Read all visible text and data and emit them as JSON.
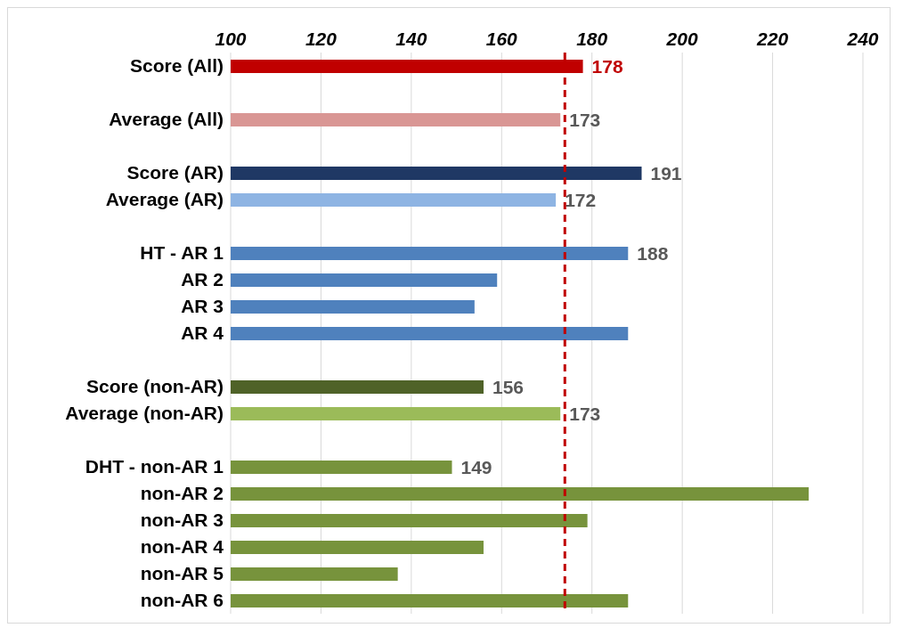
{
  "chart_data": {
    "type": "bar",
    "orientation": "horizontal",
    "categories": [
      "Score (All)",
      null,
      "Average (All)",
      null,
      "Score (AR)",
      "Average (AR)",
      null,
      "HT - AR 1",
      "AR 2",
      "AR 3",
      "AR 4",
      null,
      "Score (non-AR)",
      "Average (non-AR)",
      null,
      "DHT - non-AR 1",
      "non-AR 2",
      "non-AR 3",
      "non-AR 4",
      "non-AR 5",
      "non-AR 6"
    ],
    "values": [
      178,
      null,
      173,
      null,
      191,
      172,
      null,
      188,
      159,
      154,
      188,
      null,
      156,
      173,
      null,
      149,
      228,
      179,
      156,
      137,
      188
    ],
    "value_labels": [
      "178",
      null,
      "173",
      null,
      "191",
      "172",
      null,
      "188",
      null,
      null,
      null,
      null,
      "156",
      "173",
      null,
      "149",
      null,
      null,
      null,
      null,
      null
    ],
    "colors": [
      "#c00000",
      "#ffffff",
      "#d99694",
      "#ffffff",
      "#1f3864",
      "#8eb4e3",
      "#ffffff",
      "#4f81bd",
      "#4f81bd",
      "#4f81bd",
      "#4f81bd",
      "#ffffff",
      "#4f6228",
      "#9bbb59",
      "#ffffff",
      "#77933c",
      "#77933c",
      "#77933c",
      "#77933c",
      "#77933c",
      "#77933c"
    ],
    "xlim": [
      100,
      240
    ],
    "xticks": [
      100,
      120,
      140,
      160,
      180,
      200,
      220,
      240
    ],
    "grid": "x",
    "ref_lines": [
      {
        "axis": "x",
        "value": 174,
        "color": "#c00000",
        "line_style": "dashed"
      }
    ]
  }
}
